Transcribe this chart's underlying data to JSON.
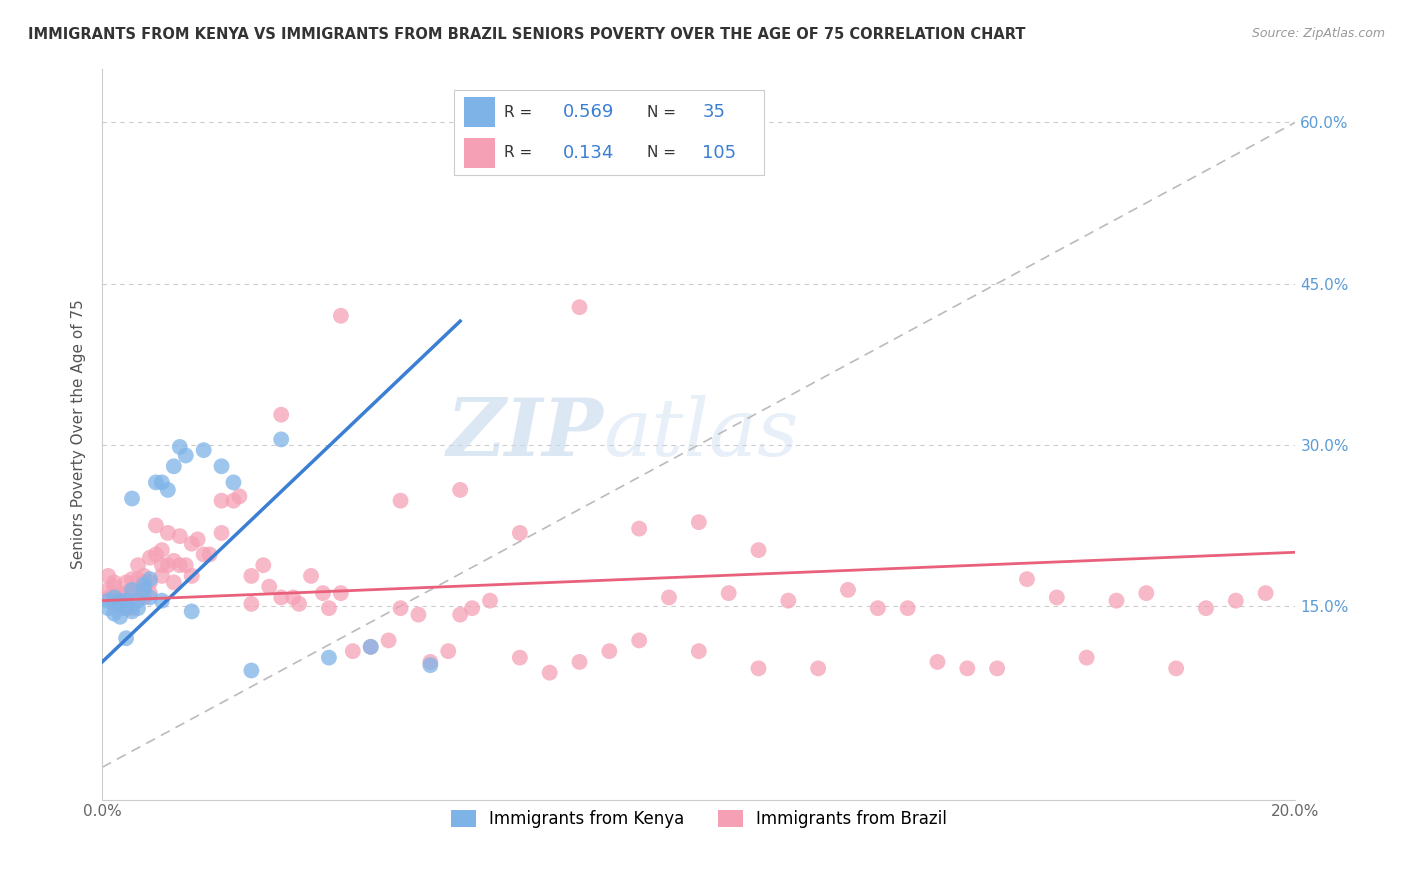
{
  "title": "IMMIGRANTS FROM KENYA VS IMMIGRANTS FROM BRAZIL SENIORS POVERTY OVER THE AGE OF 75 CORRELATION CHART",
  "source": "Source: ZipAtlas.com",
  "ylabel": "Seniors Poverty Over the Age of 75",
  "x_min": 0.0,
  "x_max": 0.2,
  "y_min": -0.03,
  "y_max": 0.65,
  "kenya_color": "#7eb3e8",
  "brazil_color": "#f5a0b5",
  "kenya_R": 0.569,
  "kenya_N": 35,
  "brazil_R": 0.134,
  "brazil_N": 105,
  "kenya_line_color": "#3a7fd4",
  "brazil_line_color": "#e8607a",
  "diagonal_line_color": "#bbbbbb",
  "watermark_zip": "ZIP",
  "watermark_atlas": "atlas",
  "background_color": "#ffffff",
  "grid_color": "#cccccc",
  "kenya_scatter_x": [
    0.001,
    0.001,
    0.002,
    0.002,
    0.003,
    0.003,
    0.003,
    0.004,
    0.004,
    0.004,
    0.005,
    0.005,
    0.005,
    0.006,
    0.006,
    0.007,
    0.007,
    0.008,
    0.008,
    0.009,
    0.01,
    0.01,
    0.011,
    0.012,
    0.013,
    0.014,
    0.015,
    0.017,
    0.02,
    0.022,
    0.025,
    0.03,
    0.038,
    0.045,
    0.055
  ],
  "kenya_scatter_y": [
    0.155,
    0.148,
    0.158,
    0.143,
    0.152,
    0.14,
    0.155,
    0.148,
    0.12,
    0.155,
    0.145,
    0.165,
    0.25,
    0.155,
    0.148,
    0.17,
    0.165,
    0.158,
    0.175,
    0.265,
    0.265,
    0.155,
    0.258,
    0.28,
    0.298,
    0.29,
    0.145,
    0.295,
    0.28,
    0.265,
    0.09,
    0.305,
    0.102,
    0.112,
    0.095
  ],
  "brazil_scatter_x": [
    0.001,
    0.001,
    0.001,
    0.002,
    0.002,
    0.002,
    0.002,
    0.003,
    0.003,
    0.003,
    0.003,
    0.004,
    0.004,
    0.004,
    0.004,
    0.005,
    0.005,
    0.005,
    0.006,
    0.006,
    0.006,
    0.007,
    0.007,
    0.007,
    0.007,
    0.008,
    0.008,
    0.008,
    0.009,
    0.009,
    0.01,
    0.01,
    0.01,
    0.011,
    0.011,
    0.012,
    0.012,
    0.013,
    0.013,
    0.014,
    0.015,
    0.015,
    0.016,
    0.017,
    0.018,
    0.02,
    0.02,
    0.022,
    0.023,
    0.025,
    0.025,
    0.027,
    0.028,
    0.03,
    0.032,
    0.033,
    0.035,
    0.037,
    0.038,
    0.04,
    0.042,
    0.045,
    0.048,
    0.05,
    0.053,
    0.055,
    0.058,
    0.06,
    0.062,
    0.065,
    0.07,
    0.075,
    0.08,
    0.085,
    0.09,
    0.095,
    0.1,
    0.105,
    0.11,
    0.115,
    0.12,
    0.125,
    0.13,
    0.135,
    0.14,
    0.145,
    0.15,
    0.155,
    0.16,
    0.165,
    0.17,
    0.175,
    0.18,
    0.185,
    0.19,
    0.195,
    0.03,
    0.04,
    0.05,
    0.06,
    0.07,
    0.08,
    0.09,
    0.1,
    0.11
  ],
  "brazil_scatter_y": [
    0.178,
    0.158,
    0.165,
    0.172,
    0.152,
    0.168,
    0.155,
    0.158,
    0.148,
    0.16,
    0.155,
    0.162,
    0.148,
    0.172,
    0.158,
    0.165,
    0.148,
    0.175,
    0.175,
    0.188,
    0.162,
    0.172,
    0.168,
    0.178,
    0.158,
    0.162,
    0.195,
    0.172,
    0.225,
    0.198,
    0.188,
    0.178,
    0.202,
    0.188,
    0.218,
    0.192,
    0.172,
    0.188,
    0.215,
    0.188,
    0.178,
    0.208,
    0.212,
    0.198,
    0.198,
    0.218,
    0.248,
    0.248,
    0.252,
    0.152,
    0.178,
    0.188,
    0.168,
    0.158,
    0.158,
    0.152,
    0.178,
    0.162,
    0.148,
    0.162,
    0.108,
    0.112,
    0.118,
    0.148,
    0.142,
    0.098,
    0.108,
    0.142,
    0.148,
    0.155,
    0.102,
    0.088,
    0.098,
    0.108,
    0.118,
    0.158,
    0.108,
    0.162,
    0.092,
    0.155,
    0.092,
    0.165,
    0.148,
    0.148,
    0.098,
    0.092,
    0.092,
    0.175,
    0.158,
    0.102,
    0.155,
    0.162,
    0.092,
    0.148,
    0.155,
    0.162,
    0.328,
    0.42,
    0.248,
    0.258,
    0.218,
    0.428,
    0.222,
    0.228,
    0.202
  ],
  "kenya_line_x0": 0.0,
  "kenya_line_y0": 0.098,
  "kenya_line_x1": 0.06,
  "kenya_line_y1": 0.415,
  "brazil_line_x0": 0.0,
  "brazil_line_y0": 0.155,
  "brazil_line_x1": 0.2,
  "brazil_line_y1": 0.2
}
